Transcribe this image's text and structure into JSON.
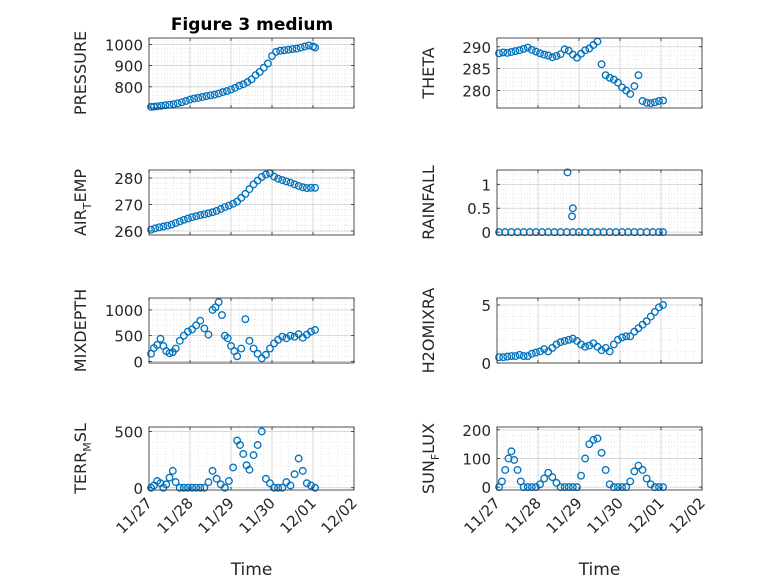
{
  "figure": {
    "title": "Figure 3 medium",
    "xlabel": "Time",
    "xticks": [
      "11/27",
      "11/28",
      "11/29",
      "11/30",
      "12/01",
      "12/02"
    ],
    "marker_color": "#0072BD",
    "grid": true,
    "minor_grid": true
  },
  "chart_data": [
    {
      "type": "scatter",
      "name": "PRESSURE",
      "ylabel": "PRESSURE",
      "ylabel_sub": "",
      "ylim": [
        700,
        1030
      ],
      "yticks": [
        800,
        900,
        1000
      ],
      "xlim": [
        0,
        5
      ],
      "x": [
        0.05,
        0.12,
        0.2,
        0.3,
        0.4,
        0.5,
        0.6,
        0.7,
        0.8,
        0.9,
        1.0,
        1.1,
        1.2,
        1.3,
        1.4,
        1.5,
        1.6,
        1.7,
        1.8,
        1.9,
        2.0,
        2.1,
        2.2,
        2.3,
        2.4,
        2.5,
        2.6,
        2.7,
        2.8,
        2.9,
        3.0,
        3.1,
        3.2,
        3.3,
        3.4,
        3.5,
        3.6,
        3.7,
        3.8,
        3.9,
        4.0,
        4.05
      ],
      "y": [
        705,
        706,
        708,
        710,
        713,
        715,
        718,
        722,
        727,
        733,
        740,
        745,
        748,
        752,
        756,
        760,
        763,
        768,
        775,
        780,
        787,
        795,
        805,
        812,
        822,
        835,
        855,
        870,
        890,
        910,
        945,
        965,
        970,
        972,
        975,
        978,
        980,
        985,
        990,
        995,
        990,
        985
      ]
    },
    {
      "type": "scatter",
      "name": "THETA",
      "ylabel": "THETA",
      "ylabel_sub": "",
      "ylim": [
        276,
        292
      ],
      "yticks": [
        280,
        285,
        290
      ],
      "xlim": [
        0,
        5
      ],
      "x": [
        0.05,
        0.15,
        0.25,
        0.35,
        0.45,
        0.55,
        0.65,
        0.75,
        0.85,
        0.95,
        1.05,
        1.15,
        1.25,
        1.35,
        1.45,
        1.55,
        1.65,
        1.75,
        1.85,
        1.95,
        2.05,
        2.15,
        2.25,
        2.35,
        2.45,
        2.55,
        2.65,
        2.75,
        2.85,
        2.95,
        3.05,
        3.15,
        3.25,
        3.35,
        3.45,
        3.55,
        3.65,
        3.75,
        3.85,
        3.95,
        4.05
      ],
      "y": [
        288.5,
        288.7,
        288.6,
        288.8,
        289,
        289.2,
        289.5,
        289.8,
        289.3,
        288.9,
        288.5,
        288.2,
        288,
        287.6,
        287.9,
        288.3,
        289.4,
        289.1,
        288.2,
        287.5,
        288.4,
        289.2,
        289.6,
        290.4,
        291.2,
        286,
        283.5,
        282.9,
        282.5,
        281.8,
        280.7,
        280,
        279.2,
        281,
        283.5,
        277.6,
        277.2,
        277.1,
        277.3,
        277.6,
        277.7
      ]
    },
    {
      "type": "scatter",
      "name": "AIR_TEMP",
      "ylabel": "AIR",
      "ylabel_sub": "T",
      "ylabel_rest": "EMP",
      "ylim": [
        258.5,
        283
      ],
      "yticks": [
        260,
        270,
        280
      ],
      "xlim": [
        0,
        5
      ],
      "x": [
        0.05,
        0.15,
        0.25,
        0.35,
        0.45,
        0.55,
        0.65,
        0.75,
        0.85,
        0.95,
        1.05,
        1.15,
        1.25,
        1.35,
        1.45,
        1.55,
        1.65,
        1.75,
        1.85,
        1.95,
        2.05,
        2.15,
        2.25,
        2.35,
        2.45,
        2.55,
        2.65,
        2.75,
        2.85,
        2.95,
        3.05,
        3.15,
        3.25,
        3.35,
        3.45,
        3.55,
        3.65,
        3.75,
        3.85,
        3.95,
        4.05
      ],
      "y": [
        260.5,
        261,
        261.4,
        261.7,
        262,
        262.4,
        263,
        263.6,
        264.2,
        264.7,
        265.2,
        265.6,
        266,
        266.3,
        266.7,
        267.1,
        267.6,
        268.3,
        269,
        269.6,
        270.3,
        271.1,
        272.5,
        274,
        275.8,
        277.6,
        279,
        280.4,
        281.3,
        281.8,
        280.5,
        279.7,
        279.2,
        278.7,
        278.2,
        277.6,
        277,
        276.5,
        276.2,
        276.3,
        276.3
      ]
    },
    {
      "type": "scatter",
      "name": "RAINFALL",
      "ylabel": "RAINFALL",
      "ylabel_sub": "",
      "ylim": [
        -0.06,
        1.3
      ],
      "yticks": [
        0,
        0.5,
        1
      ],
      "xlim": [
        0,
        5
      ],
      "x": [
        0.05,
        0.2,
        0.35,
        0.5,
        0.65,
        0.8,
        0.95,
        1.1,
        1.25,
        1.4,
        1.55,
        1.7,
        1.85,
        2.0,
        2.15,
        2.3,
        2.45,
        2.6,
        2.75,
        2.9,
        3.05,
        3.2,
        3.35,
        3.5,
        3.65,
        3.8,
        3.95,
        4.05,
        1.72,
        1.83,
        1.85
      ],
      "y": [
        0,
        0,
        0,
        0,
        0,
        0,
        0,
        0,
        0,
        0,
        0,
        0,
        0,
        0,
        0,
        0,
        0,
        0,
        0,
        0,
        0,
        0,
        0,
        0,
        0,
        0,
        0,
        0,
        1.25,
        0.33,
        0.5
      ]
    },
    {
      "type": "scatter",
      "name": "MIXDEPTH",
      "ylabel": "MIXDEPTH",
      "ylabel_sub": "",
      "ylim": [
        -30,
        1230
      ],
      "yticks": [
        0,
        500,
        1000
      ],
      "xlim": [
        0,
        5
      ],
      "x": [
        0.05,
        0.12,
        0.2,
        0.28,
        0.35,
        0.42,
        0.5,
        0.58,
        0.65,
        0.75,
        0.85,
        0.95,
        1.05,
        1.15,
        1.25,
        1.35,
        1.45,
        1.55,
        1.62,
        1.7,
        1.78,
        1.85,
        1.92,
        2.0,
        2.08,
        2.15,
        2.25,
        2.35,
        2.45,
        2.55,
        2.65,
        2.75,
        2.85,
        2.95,
        3.05,
        3.15,
        3.25,
        3.35,
        3.45,
        3.55,
        3.65,
        3.75,
        3.85,
        3.95,
        4.05
      ],
      "y": [
        150,
        260,
        320,
        440,
        300,
        200,
        160,
        180,
        250,
        400,
        500,
        580,
        620,
        700,
        790,
        640,
        520,
        1000,
        1050,
        1150,
        900,
        500,
        450,
        300,
        200,
        100,
        250,
        820,
        400,
        250,
        150,
        60,
        130,
        250,
        350,
        420,
        480,
        450,
        500,
        480,
        530,
        460,
        520,
        580,
        610
      ]
    },
    {
      "type": "scatter",
      "name": "H2OMIXRA",
      "ylabel": "H2OMIXRA",
      "ylabel_sub": "",
      "ylim": [
        0,
        5.6
      ],
      "yticks": [
        0,
        5
      ],
      "xlim": [
        0,
        5
      ],
      "x": [
        0.05,
        0.15,
        0.25,
        0.35,
        0.45,
        0.55,
        0.65,
        0.75,
        0.85,
        0.95,
        1.05,
        1.15,
        1.25,
        1.35,
        1.45,
        1.55,
        1.65,
        1.75,
        1.85,
        1.95,
        2.05,
        2.15,
        2.25,
        2.35,
        2.45,
        2.55,
        2.65,
        2.75,
        2.85,
        2.95,
        3.05,
        3.15,
        3.25,
        3.35,
        3.45,
        3.55,
        3.65,
        3.75,
        3.85,
        3.95,
        4.05
      ],
      "y": [
        0.5,
        0.5,
        0.55,
        0.6,
        0.6,
        0.7,
        0.6,
        0.6,
        0.8,
        0.9,
        1.0,
        1.2,
        1.0,
        1.3,
        1.6,
        1.8,
        1.9,
        2.0,
        2.1,
        1.9,
        1.6,
        1.4,
        1.5,
        1.7,
        1.4,
        1.1,
        1.3,
        1.0,
        1.6,
        2.0,
        2.2,
        2.3,
        2.3,
        2.7,
        3.0,
        3.3,
        3.6,
        4.0,
        4.4,
        4.8,
        5.0
      ]
    },
    {
      "type": "scatter",
      "name": "TERR_MSL",
      "ylabel": "TERR",
      "ylabel_sub": "M",
      "ylabel_rest": "SL",
      "ylim": [
        -20,
        540
      ],
      "yticks": [
        0,
        500
      ],
      "xlim": [
        0,
        5
      ],
      "x": [
        0.05,
        0.12,
        0.2,
        0.28,
        0.35,
        0.42,
        0.5,
        0.58,
        0.65,
        0.75,
        0.85,
        0.95,
        1.05,
        1.15,
        1.25,
        1.35,
        1.45,
        1.55,
        1.65,
        1.75,
        1.85,
        1.95,
        2.05,
        2.15,
        2.22,
        2.3,
        2.38,
        2.45,
        2.55,
        2.65,
        2.75,
        2.85,
        2.95,
        3.05,
        3.15,
        3.25,
        3.35,
        3.45,
        3.55,
        3.65,
        3.75,
        3.85,
        3.95,
        4.05
      ],
      "y": [
        0,
        20,
        60,
        40,
        0,
        30,
        90,
        150,
        50,
        0,
        0,
        0,
        0,
        0,
        0,
        0,
        50,
        150,
        80,
        30,
        0,
        60,
        180,
        420,
        380,
        300,
        200,
        160,
        290,
        380,
        500,
        80,
        40,
        0,
        0,
        0,
        50,
        20,
        120,
        260,
        150,
        40,
        20,
        0
      ]
    },
    {
      "type": "scatter",
      "name": "SUN_FLUX",
      "ylabel": "SUN",
      "ylabel_sub": "F",
      "ylabel_rest": "LUX",
      "ylim": [
        -10,
        210
      ],
      "yticks": [
        0,
        100,
        200
      ],
      "xlim": [
        0,
        5
      ],
      "x": [
        0.05,
        0.12,
        0.2,
        0.28,
        0.35,
        0.42,
        0.5,
        0.58,
        0.65,
        0.75,
        0.85,
        0.95,
        1.05,
        1.15,
        1.25,
        1.35,
        1.45,
        1.55,
        1.65,
        1.75,
        1.85,
        1.95,
        2.05,
        2.15,
        2.25,
        2.35,
        2.45,
        2.55,
        2.65,
        2.75,
        2.85,
        2.95,
        3.05,
        3.15,
        3.25,
        3.35,
        3.45,
        3.55,
        3.65,
        3.75,
        3.85,
        3.95,
        4.05
      ],
      "y": [
        0,
        20,
        60,
        100,
        125,
        95,
        60,
        20,
        0,
        0,
        0,
        0,
        10,
        30,
        50,
        35,
        15,
        0,
        0,
        0,
        0,
        0,
        40,
        100,
        150,
        165,
        170,
        120,
        60,
        10,
        0,
        0,
        0,
        0,
        20,
        55,
        75,
        60,
        30,
        10,
        0,
        0,
        0
      ]
    }
  ]
}
